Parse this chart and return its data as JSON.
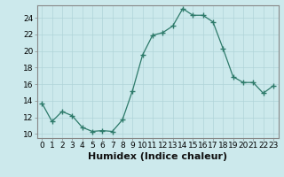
{
  "x": [
    0,
    1,
    2,
    3,
    4,
    5,
    6,
    7,
    8,
    9,
    10,
    11,
    12,
    13,
    14,
    15,
    16,
    17,
    18,
    19,
    20,
    21,
    22,
    23
  ],
  "y": [
    13.7,
    11.5,
    12.7,
    12.2,
    10.8,
    10.3,
    10.4,
    10.3,
    11.7,
    15.2,
    19.5,
    21.9,
    22.2,
    23.0,
    25.1,
    24.3,
    24.3,
    23.5,
    20.3,
    16.9,
    16.2,
    16.2,
    14.9,
    15.8
  ],
  "line_color": "#2d7a6a",
  "marker": "+",
  "marker_size": 4,
  "bg_color": "#cce9ec",
  "grid_color": "#b0d4d8",
  "xlabel": "Humidex (Indice chaleur)",
  "ylim": [
    9.5,
    25.5
  ],
  "yticks": [
    10,
    12,
    14,
    16,
    18,
    20,
    22,
    24
  ],
  "xticks": [
    0,
    1,
    2,
    3,
    4,
    5,
    6,
    7,
    8,
    9,
    10,
    11,
    12,
    13,
    14,
    15,
    16,
    17,
    18,
    19,
    20,
    21,
    22,
    23
  ],
  "tick_labelsize": 6.5,
  "xlabel_fontsize": 8.0,
  "spine_color": "#888888"
}
